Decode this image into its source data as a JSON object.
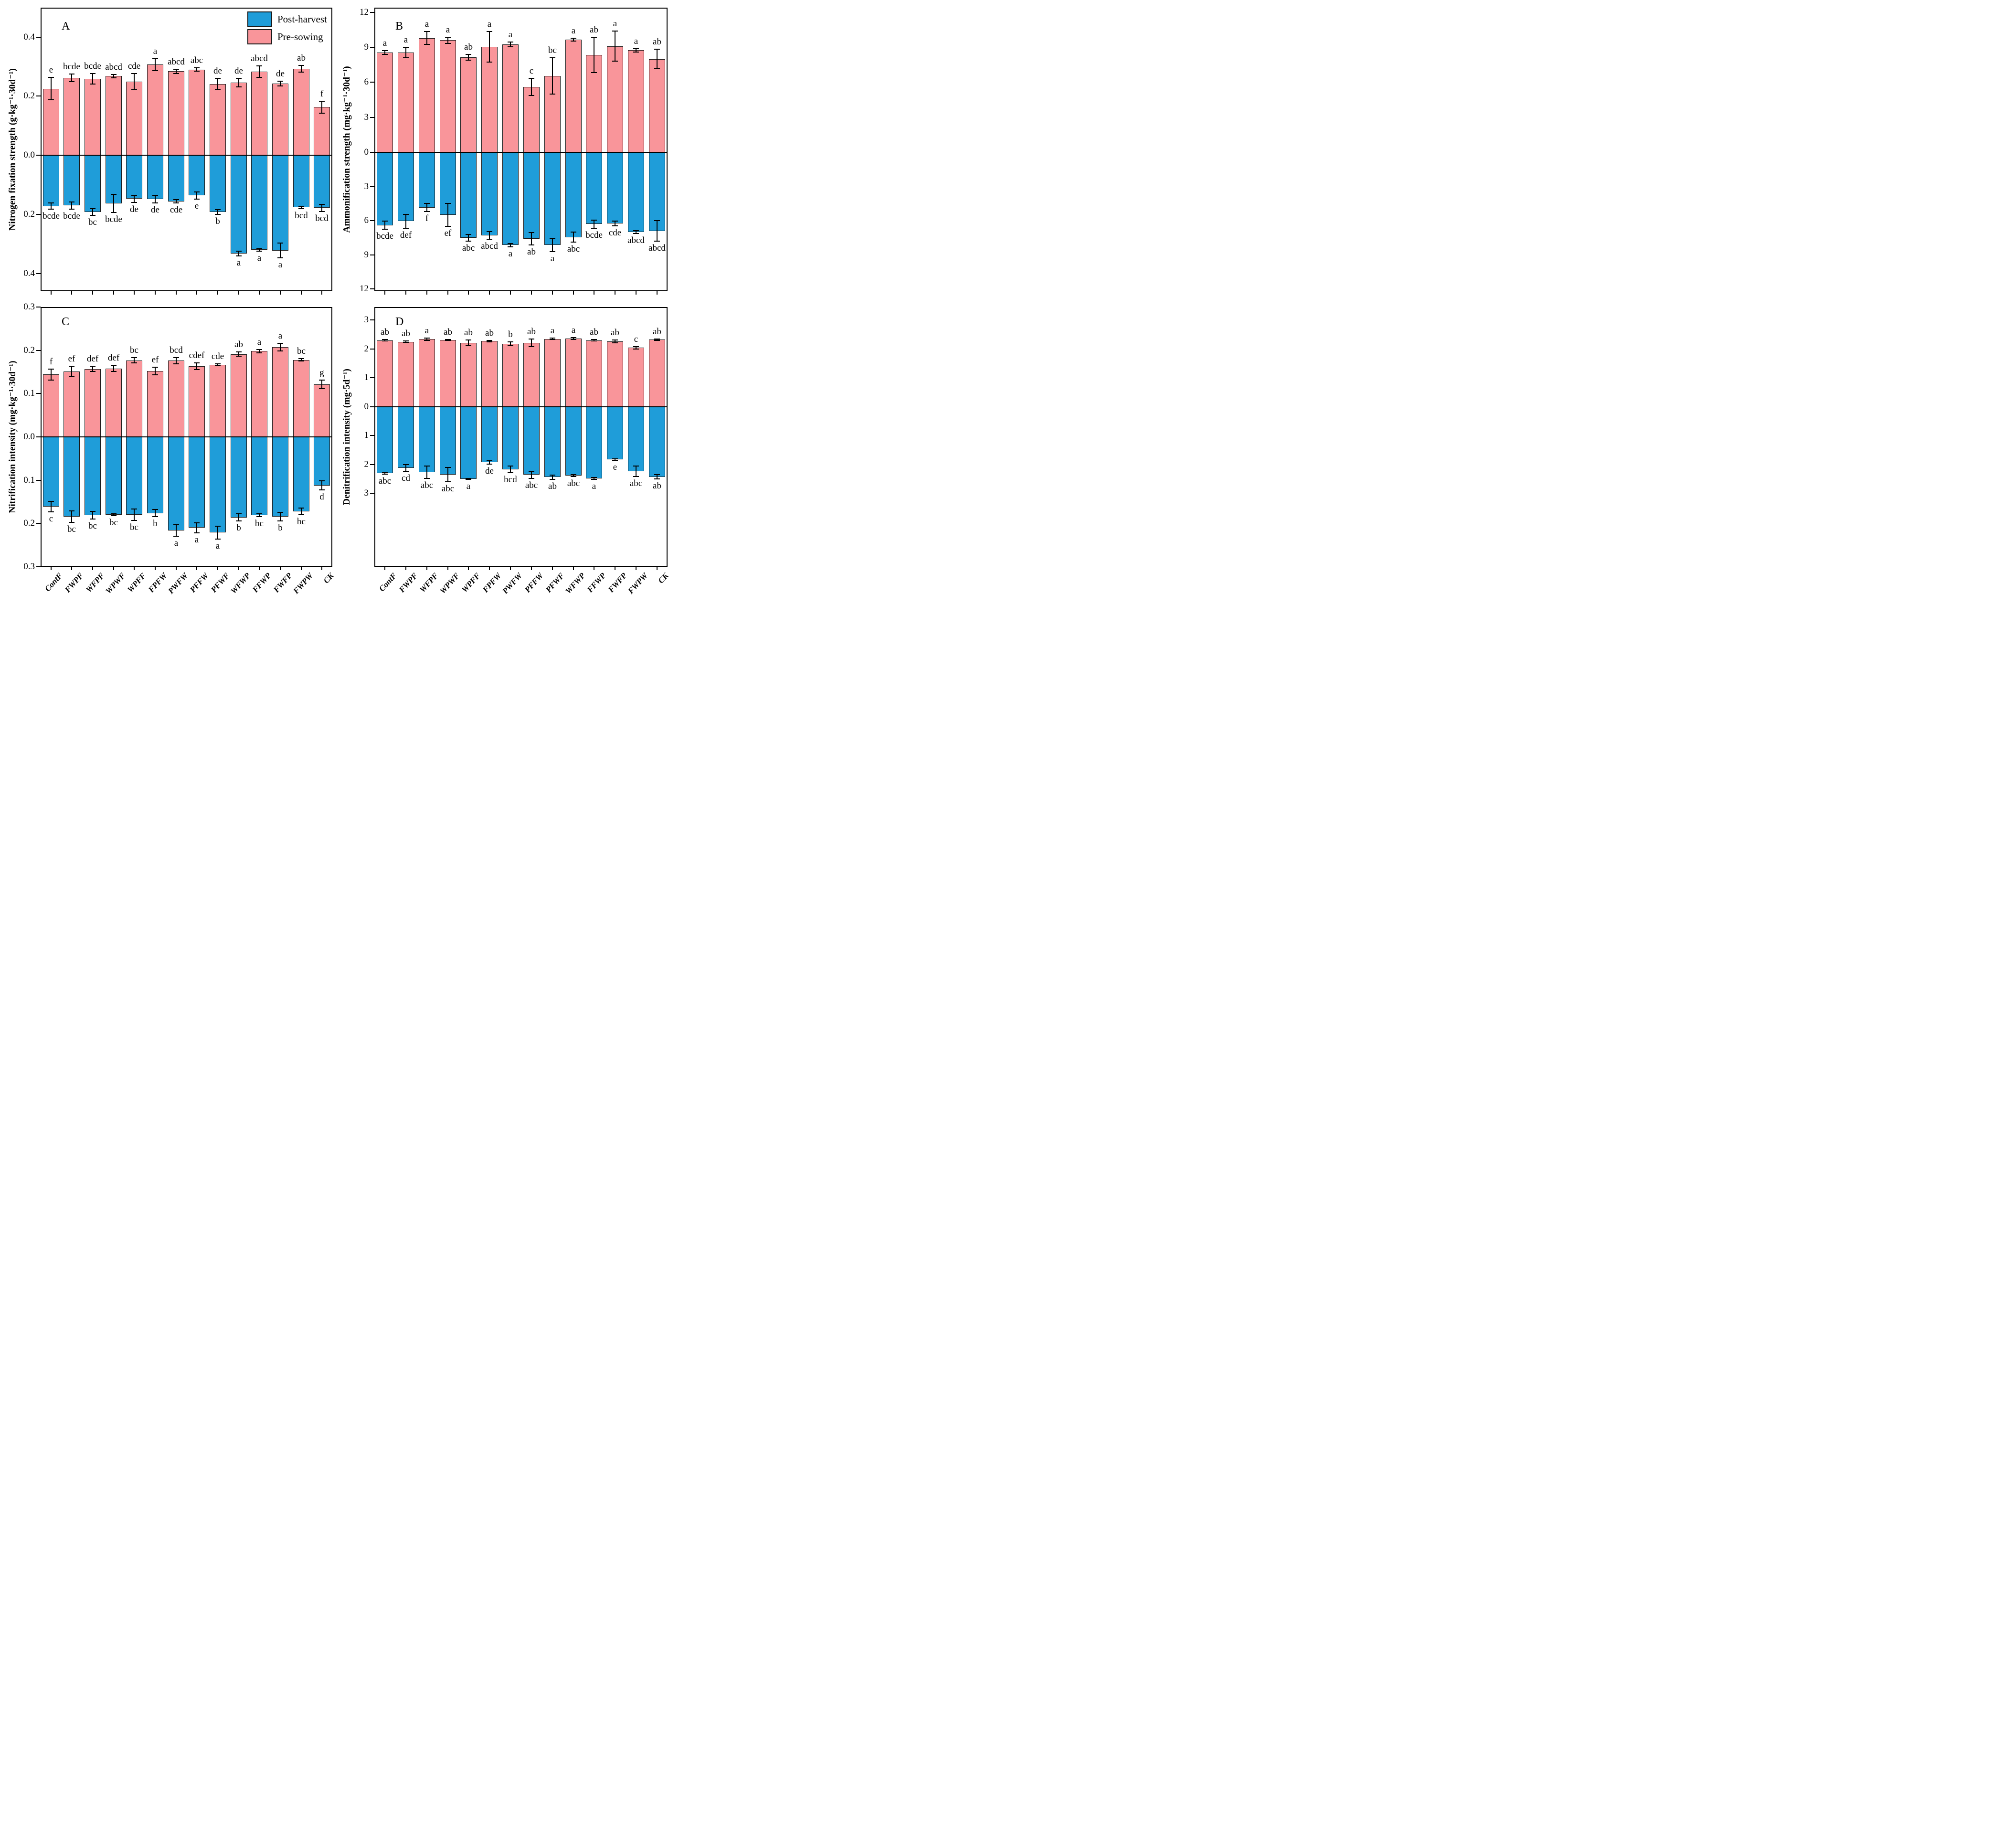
{
  "chart_data": {
    "type": "bar",
    "title": "",
    "orientation": "diverging-vertical",
    "categories": [
      "ContF",
      "FWPF",
      "WFPF",
      "WPWF",
      "WPFF",
      "FPFW",
      "PWFW",
      "PFFW",
      "PFWF",
      "WFWP",
      "FFWP",
      "FWFP",
      "FWPW",
      "CK"
    ],
    "legend": [
      {
        "key": "post",
        "label": "Post-harvest",
        "color": "#1F9DD9"
      },
      {
        "key": "pre",
        "label": "Pre-sowing",
        "color": "#F9959A"
      }
    ],
    "colors": {
      "pre": "#F9959A",
      "post": "#1F9DD9",
      "edge": "#1a1a1a",
      "axis": "#000000"
    },
    "panels": [
      {
        "id": "A",
        "panel_letter": "A",
        "ylabel": "Nitrogen fixation strength (g·kg⁻¹·30d⁻¹)",
        "axis": {
          "top_ticks": [
            0.4,
            0.2,
            0.0
          ],
          "bottom_ticks": [
            0.2,
            0.4
          ],
          "top_max": 0.5,
          "bottom_max": 0.46,
          "zero_frac": 0.52,
          "decimals": 1
        },
        "series": {
          "pre": {
            "name": "Pre-sowing",
            "values": [
              0.225,
              0.262,
              0.259,
              0.268,
              0.249,
              0.307,
              0.284,
              0.29,
              0.241,
              0.246,
              0.283,
              0.243,
              0.293,
              0.163
            ],
            "errors": [
              0.038,
              0.013,
              0.018,
              0.006,
              0.027,
              0.02,
              0.008,
              0.006,
              0.02,
              0.015,
              0.02,
              0.008,
              0.012,
              0.02
            ],
            "letters": [
              "e",
              "bcde",
              "bcde",
              "abcd",
              "cde",
              "a",
              "abcd",
              "abc",
              "de",
              "de",
              "abcd",
              "de",
              "ab",
              "f"
            ]
          },
          "post": {
            "name": "Post-harvest",
            "values": [
              0.172,
              0.17,
              0.192,
              0.163,
              0.147,
              0.148,
              0.156,
              0.136,
              0.192,
              0.332,
              0.32,
              0.322,
              0.176,
              0.178
            ],
            "errors": [
              0.01,
              0.012,
              0.012,
              0.03,
              0.012,
              0.013,
              0.006,
              0.012,
              0.008,
              0.008,
              0.004,
              0.025,
              0.004,
              0.012
            ],
            "letters": [
              "bcde",
              "bcde",
              "bc",
              "bcde",
              "de",
              "de",
              "cde",
              "e",
              "b",
              "a",
              "a",
              "a",
              "bcd",
              "bcd"
            ]
          }
        }
      },
      {
        "id": "B",
        "panel_letter": "B",
        "ylabel": "Ammonification strength (mg·kg⁻¹·30d⁻¹)",
        "axis": {
          "top_ticks": [
            12,
            9,
            6,
            3,
            0
          ],
          "bottom_ticks": [
            3,
            6,
            9,
            12
          ],
          "top_max": 12.4,
          "bottom_max": 12.2,
          "zero_frac": 0.51,
          "decimals": 0
        },
        "series": {
          "pre": {
            "name": "Pre-sowing",
            "values": [
              8.55,
              8.55,
              9.8,
              9.6,
              8.15,
              9.05,
              9.25,
              5.6,
              6.55,
              9.65,
              8.35,
              9.1,
              8.75,
              8.0
            ],
            "errors": [
              0.15,
              0.45,
              0.55,
              0.25,
              0.25,
              1.3,
              0.2,
              0.75,
              1.55,
              0.12,
              1.5,
              1.3,
              0.15,
              0.85
            ],
            "letters": [
              "a",
              "a",
              "a",
              "a",
              "ab",
              "a",
              "a",
              "c",
              "bc",
              "a",
              "ab",
              "a",
              "a",
              "ab"
            ]
          },
          "post": {
            "name": "Post-harvest",
            "values": [
              6.4,
              6.05,
              4.85,
              5.5,
              7.5,
              7.3,
              8.15,
              7.6,
              8.15,
              7.45,
              6.3,
              6.25,
              7.0,
              6.9
            ],
            "errors": [
              0.35,
              0.6,
              0.35,
              1.0,
              0.3,
              0.35,
              0.15,
              0.55,
              0.55,
              0.45,
              0.35,
              0.2,
              0.12,
              0.9
            ],
            "letters": [
              "bcde",
              "def",
              "f",
              "ef",
              "abc",
              "abcd",
              "a",
              "ab",
              "a",
              "abc",
              "bcde",
              "cde",
              "abcd",
              "abcd"
            ]
          }
        }
      },
      {
        "id": "C",
        "panel_letter": "C",
        "ylabel": "Nitrification intensity (mg·kg⁻¹·30d⁻¹)",
        "axis": {
          "top_ticks": [
            0.3,
            0.2,
            0.1,
            0.0
          ],
          "bottom_ticks": [
            0.1,
            0.2,
            0.3
          ],
          "top_max": 0.3,
          "bottom_max": 0.3,
          "zero_frac": 0.5,
          "decimals": 1
        },
        "series": {
          "pre": {
            "name": "Pre-sowing",
            "values": [
              0.144,
              0.151,
              0.157,
              0.158,
              0.177,
              0.152,
              0.176,
              0.163,
              0.167,
              0.191,
              0.198,
              0.207,
              0.178,
              0.121
            ],
            "errors": [
              0.013,
              0.012,
              0.006,
              0.007,
              0.006,
              0.009,
              0.007,
              0.008,
              0.002,
              0.005,
              0.004,
              0.009,
              0.003,
              0.01
            ],
            "letters": [
              "f",
              "ef",
              "def",
              "def",
              "bc",
              "ef",
              "bcd",
              "cdef",
              "cde",
              "ab",
              "a",
              "a",
              "bc",
              "g"
            ]
          },
          "post": {
            "name": "Post-harvest",
            "values": [
              0.161,
              0.184,
              0.181,
              0.18,
              0.18,
              0.176,
              0.216,
              0.21,
              0.221,
              0.186,
              0.181,
              0.184,
              0.172,
              0.112
            ],
            "errors": [
              0.012,
              0.013,
              0.009,
              0.002,
              0.013,
              0.008,
              0.013,
              0.012,
              0.015,
              0.008,
              0.003,
              0.01,
              0.008,
              0.01
            ],
            "letters": [
              "c",
              "bc",
              "bc",
              "bc",
              "bc",
              "b",
              "a",
              "a",
              "a",
              "b",
              "bc",
              "b",
              "bc",
              "d"
            ]
          }
        }
      },
      {
        "id": "D",
        "panel_letter": "D",
        "ylabel": "Denitrification intensity (mg·5d⁻¹)",
        "axis": {
          "top_ticks": [
            3,
            2,
            1,
            0
          ],
          "bottom_ticks": [
            1,
            2,
            3
          ],
          "top_max": 3.45,
          "bottom_max": 5.55,
          "zero_frac": 0.385,
          "decimals": 0
        },
        "series": {
          "pre": {
            "name": "Pre-sowing",
            "values": [
              2.3,
              2.25,
              2.34,
              2.31,
              2.21,
              2.27,
              2.18,
              2.21,
              2.35,
              2.36,
              2.3,
              2.26,
              2.04,
              2.32
            ],
            "errors": [
              0.02,
              0.02,
              0.04,
              0.02,
              0.1,
              0.02,
              0.06,
              0.13,
              0.02,
              0.04,
              0.02,
              0.05,
              0.04,
              0.03
            ],
            "letters": [
              "ab",
              "ab",
              "a",
              "ab",
              "ab",
              "ab",
              "b",
              "ab",
              "a",
              "a",
              "ab",
              "ab",
              "c",
              "ab"
            ]
          },
          "post": {
            "name": "Post-harvest",
            "values": [
              2.3,
              2.12,
              2.27,
              2.35,
              2.5,
              1.93,
              2.17,
              2.36,
              2.44,
              2.39,
              2.49,
              1.83,
              2.24,
              2.43
            ],
            "errors": [
              0.03,
              0.12,
              0.21,
              0.25,
              0.01,
              0.06,
              0.12,
              0.12,
              0.07,
              0.03,
              0.03,
              0.02,
              0.18,
              0.07
            ],
            "letters": [
              "abc",
              "cd",
              "abc",
              "abc",
              "a",
              "de",
              "bcd",
              "abc",
              "ab",
              "abc",
              "a",
              "e",
              "abc",
              "ab"
            ]
          }
        }
      }
    ]
  }
}
